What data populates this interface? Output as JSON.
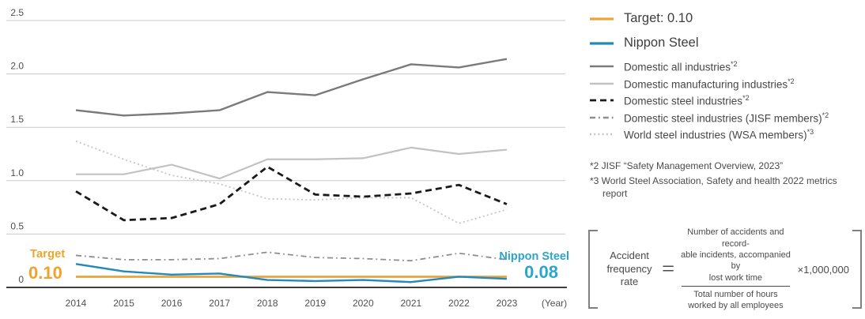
{
  "colors": {
    "accent_orange": "#EFA32C",
    "accent_cyan": "#2AA5D0",
    "grid": "#C9C9C9",
    "axis": "#3D3D3D",
    "text": "#4A4A4A"
  },
  "chart_data": {
    "type": "line",
    "title": "Accident frequency rate",
    "x": [
      "2014",
      "2015",
      "2016",
      "2017",
      "2018",
      "2019",
      "2020",
      "2021",
      "2022",
      "2023"
    ],
    "x_axis_unit": "(Year)",
    "ylim": [
      0,
      2.5
    ],
    "ytick_values": [
      0,
      0.5,
      1.0,
      1.5,
      2.0,
      2.5
    ],
    "ytick_labels": [
      "0",
      "0.5",
      "1.0",
      "1.5",
      "2.0",
      "2.5"
    ],
    "grid": "horizontal",
    "legend_position": "right",
    "series": [
      {
        "name": "Target",
        "color": "#EBA33C",
        "width": 2.8,
        "dash": "",
        "values": [
          0.1,
          0.1,
          0.1,
          0.1,
          0.1,
          0.1,
          0.1,
          0.1,
          0.1,
          0.1
        ]
      },
      {
        "name": "Nippon Steel",
        "color": "#2389BC",
        "width": 2.4,
        "dash": "",
        "values": [
          0.22,
          0.15,
          0.12,
          0.13,
          0.07,
          0.06,
          0.07,
          0.05,
          0.1,
          0.08
        ]
      },
      {
        "name": "Domestic all industries",
        "color": "#7A7A7A",
        "width": 2.4,
        "dash": "",
        "values": [
          1.66,
          1.61,
          1.63,
          1.66,
          1.83,
          1.8,
          1.95,
          2.09,
          2.06,
          2.14
        ]
      },
      {
        "name": "Domestic manufacturing industries",
        "color": "#C2C2C2",
        "width": 2.2,
        "dash": "",
        "values": [
          1.06,
          1.06,
          1.15,
          1.02,
          1.2,
          1.2,
          1.21,
          1.31,
          1.25,
          1.29
        ]
      },
      {
        "name": "Domestic steel industries",
        "color": "#1A1A1A",
        "width": 2.8,
        "dash": "8 5",
        "values": [
          0.9,
          0.63,
          0.65,
          0.78,
          1.13,
          0.87,
          0.85,
          0.88,
          0.96,
          0.78
        ]
      },
      {
        "name": "Domestic steel industries (JISF members)",
        "color": "#8E8E8E",
        "width": 1.8,
        "dash": "7 4 1.8 4",
        "values": [
          0.3,
          0.26,
          0.26,
          0.27,
          0.33,
          0.28,
          0.27,
          0.25,
          0.32,
          0.26
        ]
      },
      {
        "name": "World steel industries (WSA members)",
        "color": "#C5C5C5",
        "width": 1.8,
        "dash": "2 3.2",
        "values": [
          1.37,
          1.2,
          1.05,
          0.97,
          0.83,
          0.82,
          0.84,
          0.84,
          0.6,
          0.73
        ]
      }
    ],
    "annotations": {
      "target_label": "Target",
      "target_value": "0.10",
      "nippon_label": "Nippon Steel",
      "nippon_value": "0.08"
    }
  },
  "legend": {
    "items": [
      {
        "label": "Target: 0.10",
        "sup": "",
        "size": "lg",
        "series": 0
      },
      {
        "label": "Nippon Steel",
        "sup": "",
        "size": "lg",
        "series": 1
      },
      {
        "label": "Domestic all industries",
        "sup": "*2",
        "size": "sm",
        "series": 2
      },
      {
        "label": "Domestic manufacturing industries",
        "sup": "*2",
        "size": "sm",
        "series": 3
      },
      {
        "label": "Domestic steel industries",
        "sup": "*2",
        "size": "sm",
        "series": 4
      },
      {
        "label": "Domestic steel industries (JISF members)",
        "sup": "*2",
        "size": "sm",
        "series": 5
      },
      {
        "label": "World steel industries (WSA members)",
        "sup": "*3",
        "size": "sm",
        "series": 6
      }
    ]
  },
  "footnotes": [
    "*2 JISF “Safety Management Overview, 2023”",
    "*3 World Steel Association, Safety and health 2022 metrics report"
  ],
  "formula": {
    "lhs": "Accident frequency rate",
    "equals": "=",
    "numerator_lines": [
      "Number of accidents and record-",
      "able incidents, accompanied by",
      "lost work time"
    ],
    "denominator_lines": [
      "Total number of hours",
      "worked by all employees"
    ],
    "multiplier": "×1,000,000"
  }
}
